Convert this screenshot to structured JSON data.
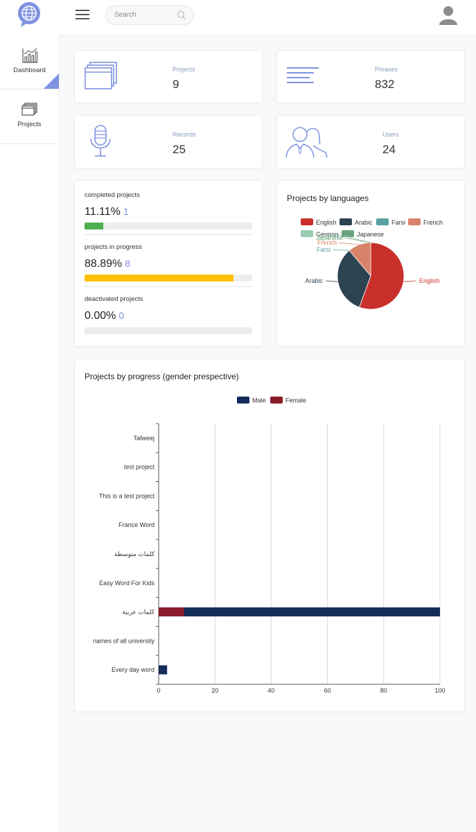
{
  "header": {
    "search_placeholder": "Search"
  },
  "sidebar": {
    "items": [
      {
        "label": "Dashboard",
        "active": true
      },
      {
        "label": "Projects",
        "active": false
      }
    ]
  },
  "stats": {
    "projects": {
      "label": "Projects",
      "value": "9"
    },
    "phrases": {
      "label": "Phrases",
      "value": "832"
    },
    "records": {
      "label": "Records",
      "value": "25"
    },
    "users": {
      "label": "Users",
      "value": "24"
    }
  },
  "progress": {
    "completed": {
      "title": "completed projects",
      "percent": "11.11%",
      "count": "1",
      "fraction": 0.1111,
      "color": "#4caf50"
    },
    "in_progress": {
      "title": "projects in progress",
      "percent": "88.89%",
      "count": "8",
      "fraction": 0.8889,
      "color": "#ffc107"
    },
    "deactivated": {
      "title": "deactivated projects",
      "percent": "0.00%",
      "count": "0",
      "fraction": 0.0,
      "color": "#ededed"
    }
  },
  "colors": {
    "accent": "#7f93e0",
    "male": "#142c5a",
    "female": "#8b1a2a"
  },
  "chart_data": [
    {
      "type": "pie",
      "title": "Projects by languages",
      "legend": [
        "English",
        "Arabic",
        "Farsi",
        "French",
        "German",
        "Japanese"
      ],
      "legend_colors": [
        "#c9302c",
        "#2e4352",
        "#5aa0a3",
        "#d9826a",
        "#99cbb0",
        "#68a57e"
      ],
      "values": [
        5,
        3,
        0,
        1,
        0,
        0
      ],
      "slice_labels": [
        "English",
        "Arabic",
        "Farsi",
        "French",
        "German",
        "Japanese"
      ]
    },
    {
      "type": "bar",
      "orientation": "horizontal",
      "stacked": true,
      "title": "Projects by progress (gender prespective)",
      "categories": [
        "Tafweej",
        "test project",
        "This is a test project",
        "France Word",
        "كلمات متوسطة",
        "Easy Word For Kids",
        "كلمات عربية",
        "names of all university",
        "Every day word"
      ],
      "series": [
        {
          "name": "Male",
          "values": [
            0,
            0,
            0,
            0,
            0,
            0,
            91,
            0,
            3
          ]
        },
        {
          "name": "Female",
          "values": [
            0,
            0,
            0,
            0,
            0,
            0,
            9,
            0,
            0
          ]
        }
      ],
      "xlim": [
        0,
        100
      ],
      "xticks": [
        "0",
        "20",
        "40",
        "60",
        "80",
        "100"
      ]
    }
  ]
}
